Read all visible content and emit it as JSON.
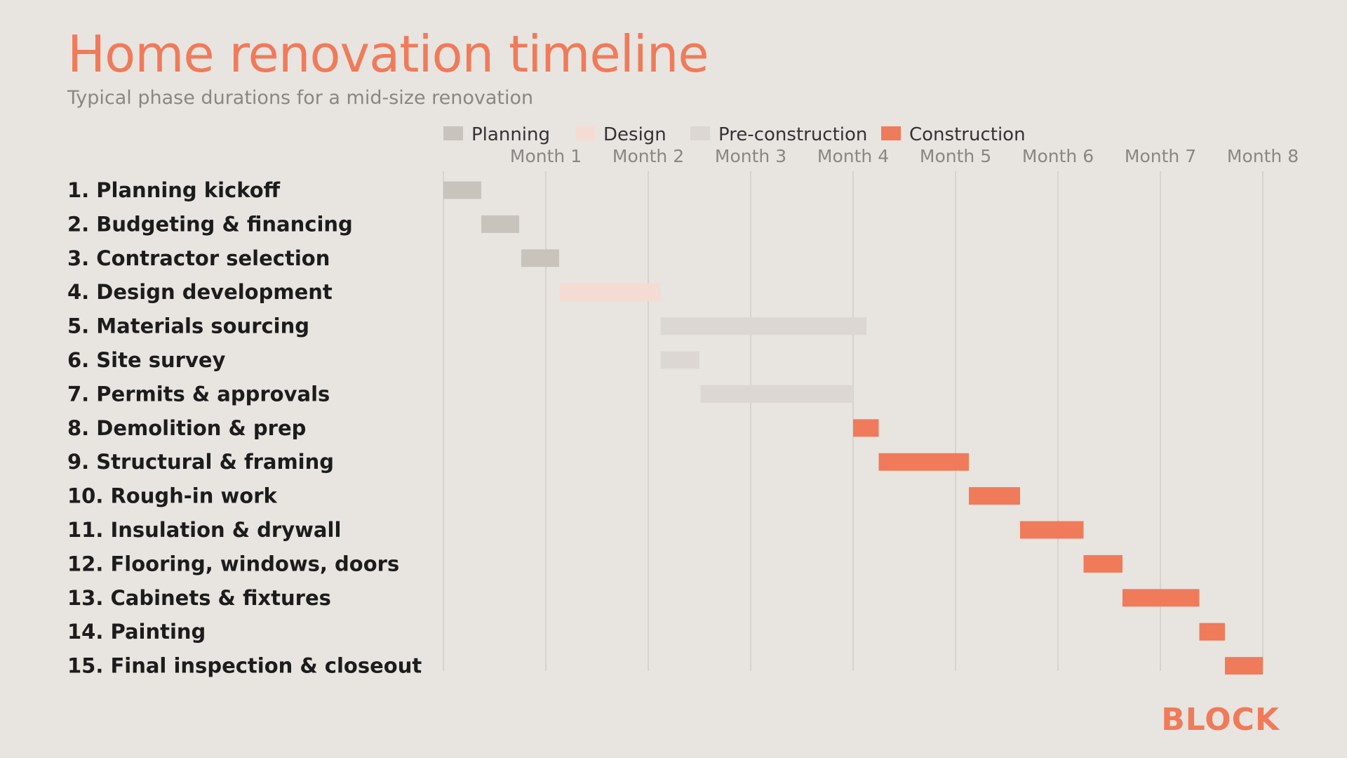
{
  "chart_data": {
    "type": "gantt",
    "title": "Home renovation timeline",
    "subtitle": "Typical phase durations for a mid-size renovation",
    "x_ticks": [
      "Month 1",
      "Month 2",
      "Month 3",
      "Month 4",
      "Month 5",
      "Month 6",
      "Month 7",
      "Month 8"
    ],
    "x_range_months": [
      0,
      8
    ],
    "grid": true,
    "legend_position": "top",
    "phases": [
      {
        "name": "Planning",
        "color": "#c9c3be"
      },
      {
        "name": "Design",
        "color": "#f5dcd3"
      },
      {
        "name": "Pre-construction",
        "color": "#dcd7d2"
      },
      {
        "name": "Construction",
        "color": "#ef7b5a"
      }
    ],
    "tasks": [
      {
        "label": "1. Planning kickoff",
        "phase": "Planning",
        "start": 0.0,
        "end": 0.37
      },
      {
        "label": "2. Budgeting & financing",
        "phase": "Planning",
        "start": 0.37,
        "end": 0.74
      },
      {
        "label": "3. Contractor selection",
        "phase": "Planning",
        "start": 0.76,
        "end": 1.13
      },
      {
        "label": "4. Design development",
        "phase": "Design",
        "start": 1.13,
        "end": 2.12
      },
      {
        "label": "5. Materials sourcing",
        "phase": "Pre-construction",
        "start": 2.12,
        "end": 4.13
      },
      {
        "label": "6. Site survey",
        "phase": "Pre-construction",
        "start": 2.12,
        "end": 2.5
      },
      {
        "label": "7. Permits & approvals",
        "phase": "Pre-construction",
        "start": 2.51,
        "end": 4.0
      },
      {
        "label": "8. Demolition & prep",
        "phase": "Construction",
        "start": 4.0,
        "end": 4.25
      },
      {
        "label": "9. Structural & framing",
        "phase": "Construction",
        "start": 4.25,
        "end": 5.13
      },
      {
        "label": "10. Rough-in work",
        "phase": "Construction",
        "start": 5.13,
        "end": 5.63
      },
      {
        "label": "11. Insulation & drywall",
        "phase": "Construction",
        "start": 5.63,
        "end": 6.25
      },
      {
        "label": "12. Flooring, windows, doors",
        "phase": "Construction",
        "start": 6.25,
        "end": 6.63
      },
      {
        "label": "13. Cabinets & fixtures",
        "phase": "Construction",
        "start": 6.63,
        "end": 7.38
      },
      {
        "label": "14. Painting",
        "phase": "Construction",
        "start": 7.38,
        "end": 7.63
      },
      {
        "label": "15. Final inspection & closeout",
        "phase": "Construction",
        "start": 7.63,
        "end": 8.0
      }
    ]
  },
  "brand": {
    "logo_text": "BLOCK",
    "accent_color": "#ef7b5a",
    "grid_color": "#d2cdc8",
    "background_color": "#e8e4e0"
  }
}
